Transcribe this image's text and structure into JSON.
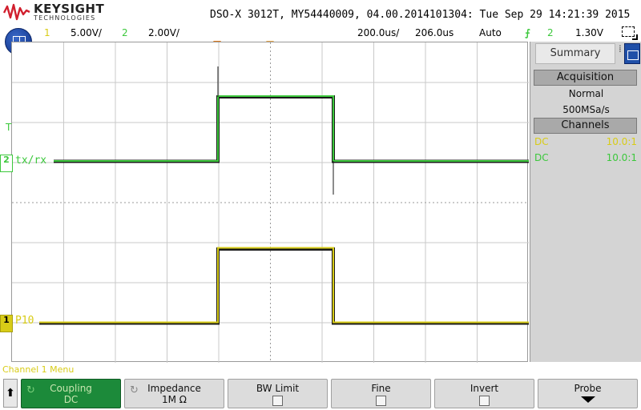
{
  "header": {
    "brand": "KEYSIGHT",
    "brand_sub": "TECHNOLOGIES",
    "model_line": "DSO-X 3012T, MY54440009, 04.00.2014101304: Tue Sep 29 14:21:39 2015"
  },
  "status": {
    "ch1_num": "1",
    "ch1_scale": "5.00V/",
    "ch2_num": "2",
    "ch2_scale": "2.00V/",
    "time_scale": "200.0us/",
    "time_delay": "206.0us",
    "trigger_mode": "Auto",
    "trigger_icon": "rising-edge-trigger-icon",
    "trigger_source": "2",
    "trigger_level": "1.30V"
  },
  "screen": {
    "trigger_level_label": "T",
    "ch2_label": "tx/rx",
    "ch2_gnd": "2",
    "ch1_label": "P10",
    "ch1_gnd": "1"
  },
  "panel": {
    "tab": "Summary",
    "tab_dots": "⁞",
    "acq_header": "Acquisition",
    "acq_mode": "Normal",
    "sample_rate": "500MSa/s",
    "channels_header": "Channels",
    "channels": [
      {
        "coupling": "DC",
        "probe": "10.0:1",
        "color": "#d8cc17"
      },
      {
        "coupling": "DC",
        "probe": "10.0:1",
        "color": "#3cc83c"
      }
    ]
  },
  "menu": {
    "title": "Channel 1 Menu",
    "back": "⬆",
    "softkeys": [
      {
        "label": "Coupling",
        "value": "DC",
        "active": true
      },
      {
        "label": "Impedance",
        "value": "1M Ω"
      },
      {
        "label": "BW Limit"
      },
      {
        "label": "Fine"
      },
      {
        "label": "Invert"
      },
      {
        "label": "Probe"
      }
    ]
  },
  "colors": {
    "ch1": "#d8cc17",
    "ch2": "#3cc83c",
    "trigger_marker": "#e07b1a"
  }
}
